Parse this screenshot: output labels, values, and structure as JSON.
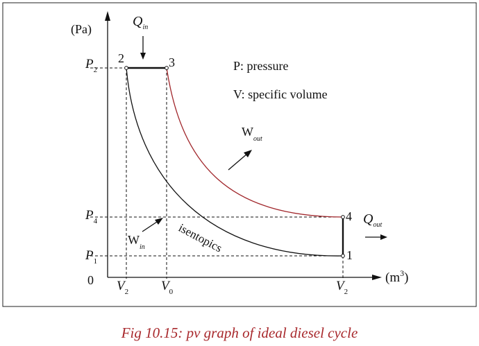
{
  "diagram": {
    "axes": {
      "y_unit": "(Pa)",
      "x_unit": "(m",
      "x_unit_power": "3",
      "x_unit_close": ")",
      "origin": "0"
    },
    "pressure_ticks": [
      {
        "base": "P",
        "sub": "2"
      },
      {
        "base": "P",
        "sub": "4"
      },
      {
        "base": "P",
        "sub": "1"
      }
    ],
    "volume_ticks": [
      {
        "base": "V",
        "sub": "2"
      },
      {
        "base": "V",
        "sub": "0"
      },
      {
        "base": "V",
        "sub": "2"
      }
    ],
    "states": [
      "1",
      "2",
      "3",
      "4"
    ],
    "heat_in": {
      "base": "Q",
      "sub": "in"
    },
    "heat_out": {
      "base": "Q",
      "sub": "out"
    },
    "work_out": {
      "base": "W",
      "sub": "out"
    },
    "work_in": {
      "base": "W",
      "sub": "in"
    },
    "curve_label": "isentopics",
    "legend": [
      "P: pressure",
      "V: specific volume"
    ],
    "colors": {
      "expansion": "#a0252a",
      "lines": "#111111",
      "caption": "#a8282c"
    }
  },
  "caption": "Fig 10.15: pv graph of ideal diesel cycle"
}
